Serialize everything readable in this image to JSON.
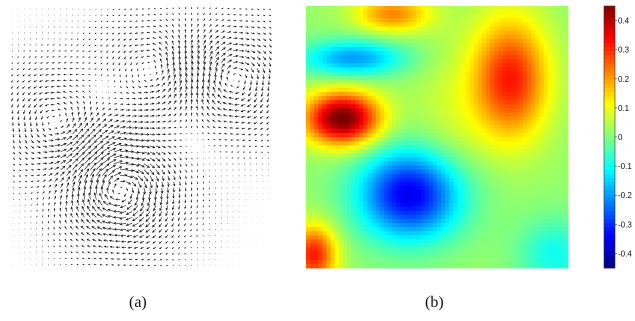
{
  "panels": {
    "a_label": "(a)",
    "b_label": "(b)"
  },
  "chart_data": [
    {
      "type": "quiver",
      "panel": "(a)",
      "description_note": "",
      "vortices": [
        {
          "cx": 0.42,
          "cy": 0.7,
          "strength": 1.0,
          "sense": "ccw"
        },
        {
          "cx": 0.85,
          "cy": 0.28,
          "strength": 0.7,
          "sense": "ccw"
        },
        {
          "cx": 0.18,
          "cy": 0.45,
          "strength": 0.6,
          "sense": "cw"
        },
        {
          "cx": 0.55,
          "cy": 0.25,
          "strength": 0.5,
          "sense": "cw"
        }
      ],
      "grid": [
        44,
        44
      ]
    },
    {
      "type": "heatmap",
      "panel": "(b)",
      "colormap": "jet",
      "clim": [
        -0.45,
        0.45
      ],
      "colorbar_ticks": [
        "0.4",
        "0.3",
        "0.2",
        "0.1",
        "0",
        "-0.1",
        "-0.2",
        "-0.3",
        "-0.4"
      ],
      "blobs": [
        {
          "cx": 0.14,
          "cy": 0.43,
          "sx": 0.1,
          "sy": 0.07,
          "amp": 0.45
        },
        {
          "cx": 0.78,
          "cy": 0.28,
          "sx": 0.1,
          "sy": 0.16,
          "amp": 0.3
        },
        {
          "cx": 0.4,
          "cy": 0.72,
          "sx": 0.14,
          "sy": 0.12,
          "amp": -0.38
        },
        {
          "cx": 0.18,
          "cy": 0.2,
          "sx": 0.14,
          "sy": 0.05,
          "amp": -0.22
        },
        {
          "cx": 0.33,
          "cy": 0.03,
          "sx": 0.1,
          "sy": 0.05,
          "amp": 0.2
        },
        {
          "cx": 0.03,
          "cy": 0.95,
          "sx": 0.06,
          "sy": 0.08,
          "amp": 0.3
        },
        {
          "cx": 0.95,
          "cy": 0.95,
          "sx": 0.1,
          "sy": 0.1,
          "amp": -0.12
        },
        {
          "cx": 0.55,
          "cy": 0.45,
          "sx": 0.1,
          "sy": 0.22,
          "amp": 0.05
        }
      ],
      "background": 0.02,
      "grid": [
        64,
        64
      ]
    }
  ]
}
